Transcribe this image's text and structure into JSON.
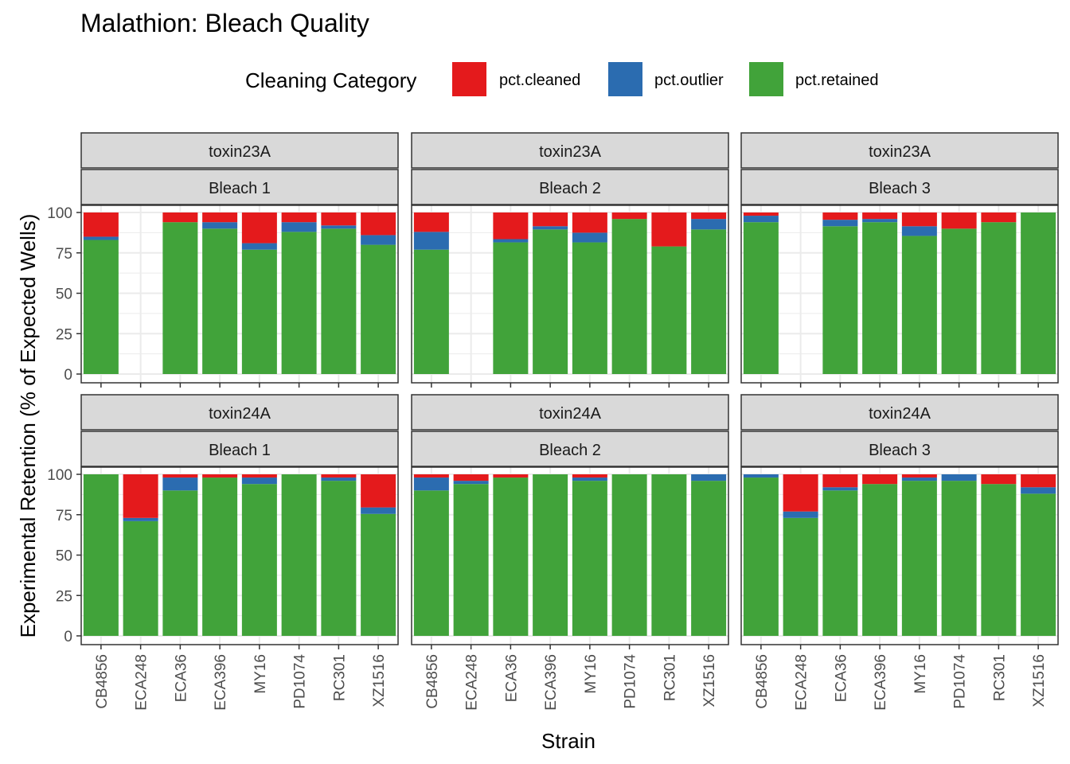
{
  "chart_data": {
    "type": "bar",
    "stacked": true,
    "title": "Malathion: Bleach Quality",
    "xlabel": "Strain",
    "ylabel": "Experimental Retention (% of Expected Wells)",
    "ylim": [
      0,
      100
    ],
    "yticks": [
      0,
      25,
      50,
      75,
      100
    ],
    "grid": true,
    "legend": {
      "title": "Cleaning Category",
      "position": "top",
      "entries": [
        {
          "name": "pct.cleaned",
          "color": "#E41A1C"
        },
        {
          "name": "pct.outlier",
          "color": "#2B6CB0"
        },
        {
          "name": "pct.retained",
          "color": "#41A33A"
        }
      ]
    },
    "categories": [
      "CB4856",
      "ECA248",
      "ECA36",
      "ECA396",
      "MY16",
      "PD1074",
      "RC301",
      "XZ1516"
    ],
    "facet_rows": [
      "toxin23A",
      "toxin24A"
    ],
    "facet_cols": [
      "Bleach 1",
      "Bleach 2",
      "Bleach 3"
    ],
    "panels": [
      {
        "row": "toxin23A",
        "col": "Bleach 1",
        "retained": [
          83,
          null,
          94,
          90,
          77,
          88,
          90,
          80
        ],
        "outlier": [
          2,
          null,
          0,
          4,
          4,
          6,
          2,
          6
        ],
        "cleaned": [
          15,
          null,
          6,
          6,
          19,
          6,
          8,
          14
        ]
      },
      {
        "row": "toxin23A",
        "col": "Bleach 2",
        "retained": [
          77,
          null,
          81.5,
          89.5,
          81.5,
          96,
          79,
          89.5
        ],
        "outlier": [
          11,
          null,
          2,
          2,
          6,
          0,
          0,
          6.5
        ],
        "cleaned": [
          12,
          null,
          16.5,
          8.5,
          12.5,
          4,
          21,
          4
        ]
      },
      {
        "row": "toxin23A",
        "col": "Bleach 3",
        "retained": [
          94,
          null,
          91.5,
          94,
          85.5,
          90,
          94,
          100
        ],
        "outlier": [
          4,
          null,
          4,
          2,
          6,
          0,
          0,
          0
        ],
        "cleaned": [
          2,
          null,
          4.5,
          4,
          8.5,
          10,
          6,
          0
        ]
      },
      {
        "row": "toxin24A",
        "col": "Bleach 1",
        "retained": [
          100,
          71,
          90,
          98,
          94,
          100,
          96,
          75.5
        ],
        "outlier": [
          0,
          2,
          8,
          0,
          4,
          0,
          2,
          4
        ],
        "cleaned": [
          0,
          27,
          2,
          2,
          2,
          0,
          2,
          20.5
        ]
      },
      {
        "row": "toxin24A",
        "col": "Bleach 2",
        "retained": [
          90,
          94,
          98,
          100,
          96,
          100,
          100,
          96
        ],
        "outlier": [
          8,
          2,
          0,
          0,
          2,
          0,
          0,
          4
        ],
        "cleaned": [
          2,
          4,
          2,
          0,
          2,
          0,
          0,
          0
        ]
      },
      {
        "row": "toxin24A",
        "col": "Bleach 3",
        "retained": [
          98,
          73,
          90,
          94,
          96,
          96,
          94,
          88
        ],
        "outlier": [
          2,
          4,
          2,
          0,
          2,
          4,
          0,
          4
        ],
        "cleaned": [
          0,
          23,
          8,
          6,
          2,
          0,
          6,
          8
        ]
      }
    ]
  }
}
